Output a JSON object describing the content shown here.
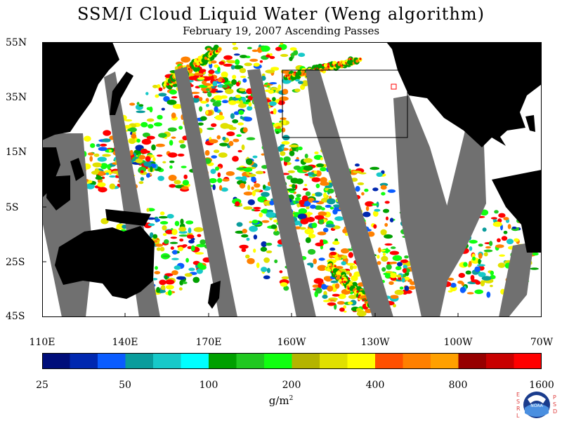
{
  "title": "SSM/I Cloud Liquid Water (Weng algorithm)",
  "subtitle": "February 19, 2007  Ascending Passes",
  "lat_labels": [
    "55N",
    "35N",
    "15N",
    "5S",
    "25S",
    "45S"
  ],
  "lon_labels": [
    "110E",
    "140E",
    "170E",
    "160W",
    "130W",
    "100W",
    "70W"
  ],
  "colorbar": {
    "colors": [
      "#000e7a",
      "#0028b0",
      "#0a5cff",
      "#0a9c9c",
      "#17c9c9",
      "#00ffff",
      "#00a000",
      "#20c820",
      "#10ff10",
      "#b4b400",
      "#e0e000",
      "#ffff00",
      "#ff5000",
      "#ff8000",
      "#ffa000",
      "#960000",
      "#c80000",
      "#ff0000"
    ],
    "labels": [
      "25",
      "50",
      "100",
      "200",
      "400",
      "800",
      "1600"
    ],
    "units_base": "g/m",
    "units_exp": "2"
  },
  "logo": {
    "text": "NOAA",
    "left_letters": [
      "E",
      "S",
      "R",
      "L"
    ],
    "right_letters": [
      "P",
      "S",
      "D"
    ]
  },
  "colors": {
    "land": "#000000",
    "missing": "#707070",
    "ocean_clear": "#ffffff"
  }
}
